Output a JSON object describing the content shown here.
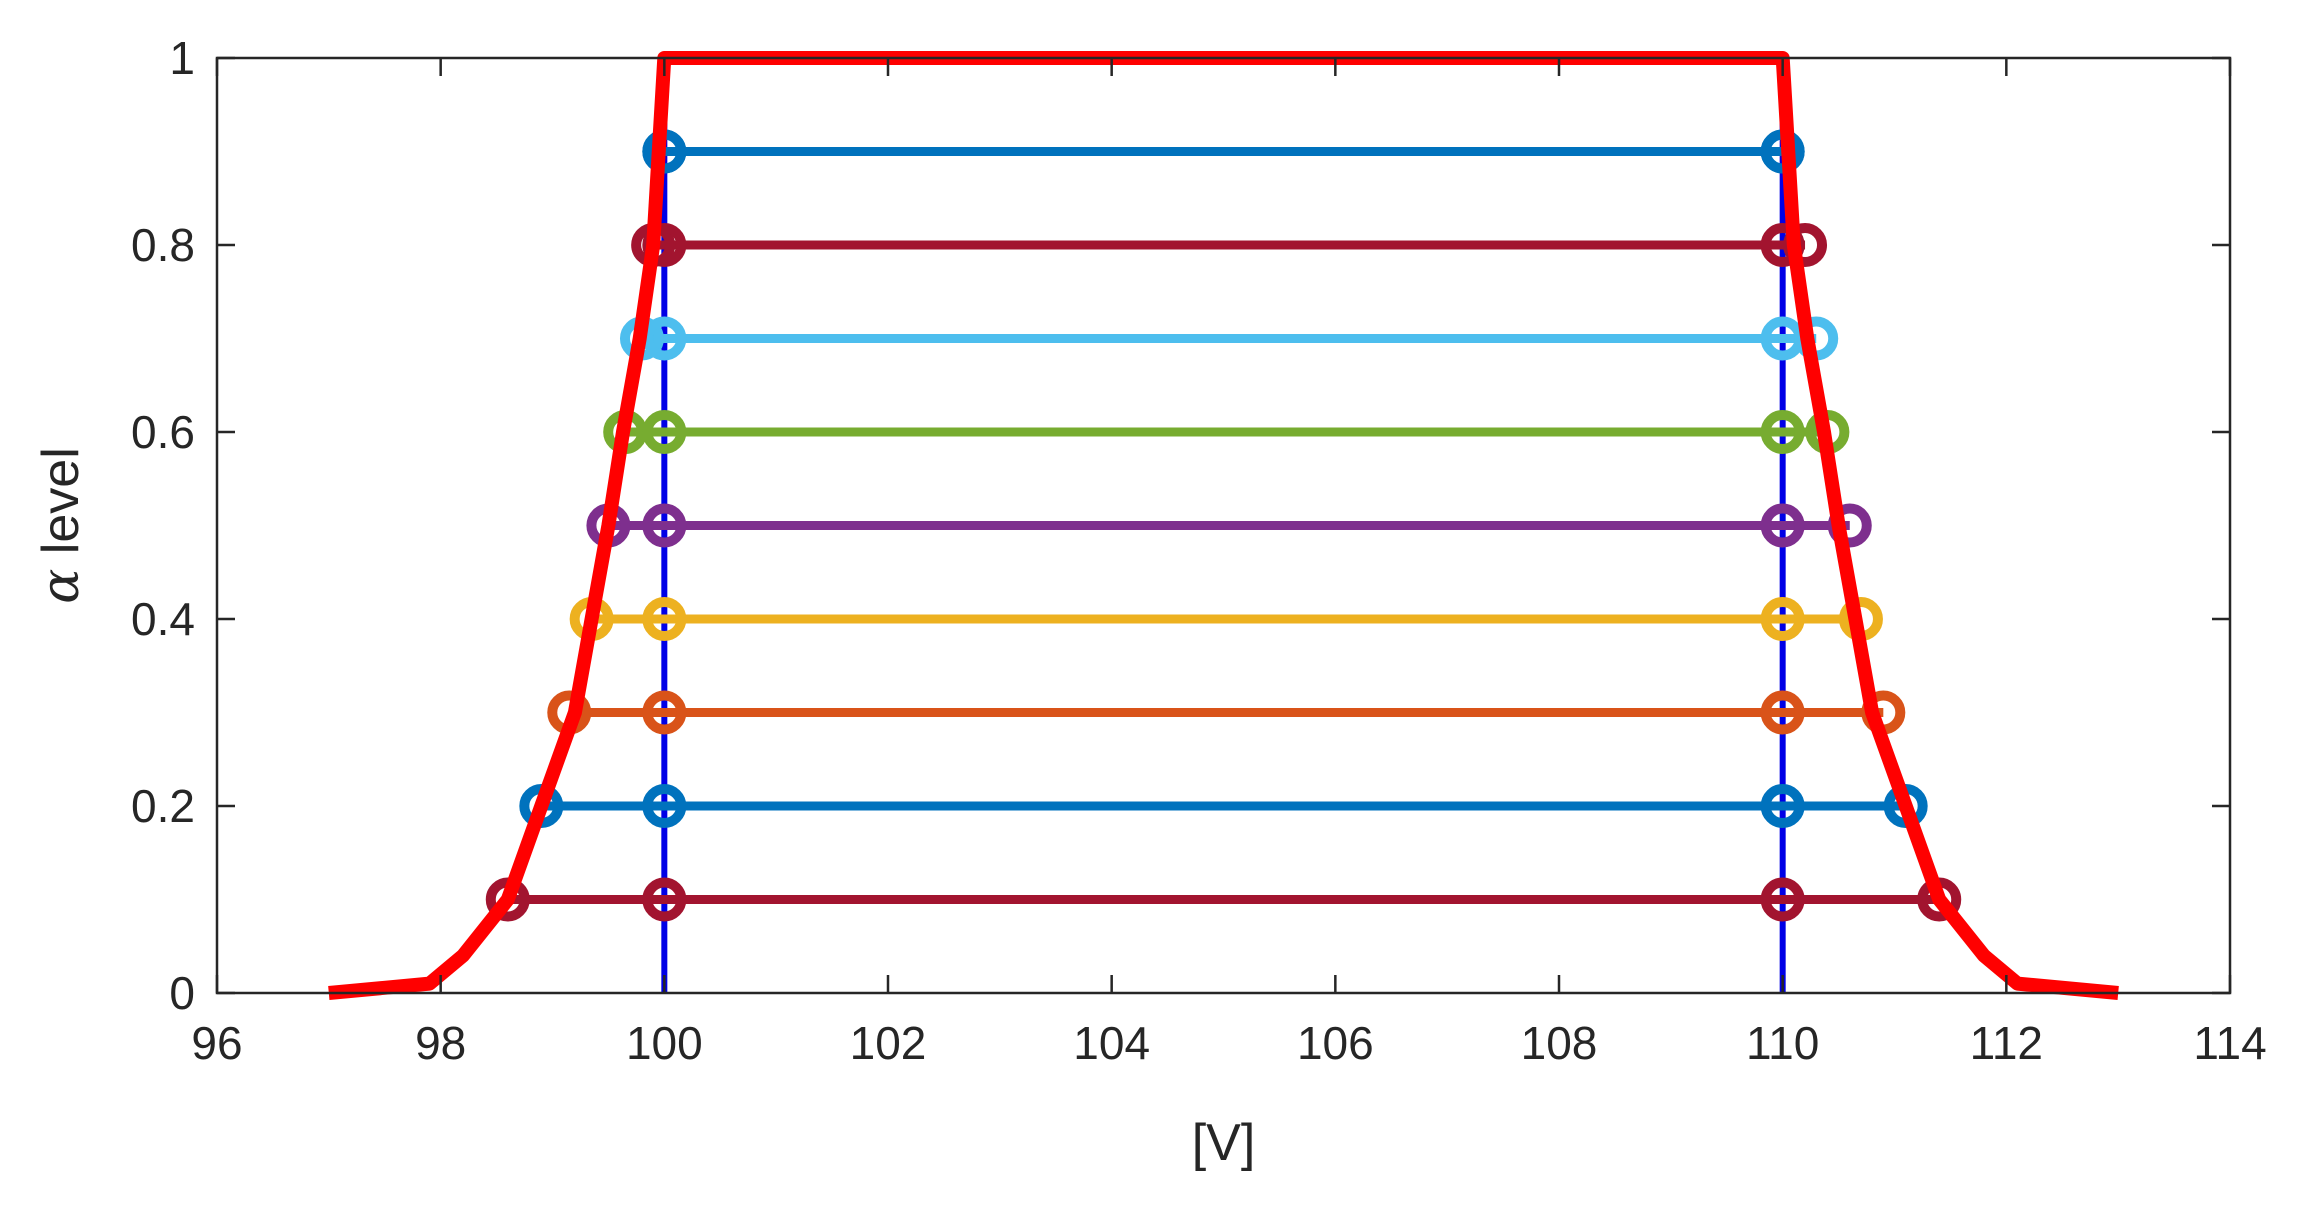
{
  "chart_data": {
    "type": "line",
    "xlabel": "[V]",
    "ylabel_symbol": "α",
    "ylabel_text": " level",
    "xlim": [
      96,
      114
    ],
    "ylim": [
      0,
      1
    ],
    "xticks": [
      "96",
      "98",
      "100",
      "102",
      "104",
      "106",
      "108",
      "110",
      "112",
      "114"
    ],
    "yticks": [
      "0",
      "0.2",
      "0.4",
      "0.6",
      "0.8",
      "1"
    ],
    "grid": false,
    "membership_function": {
      "color": "#ff0000",
      "x": [
        97.0,
        97.9,
        98.2,
        98.6,
        98.9,
        99.2,
        99.35,
        99.5,
        99.63,
        99.78,
        99.9,
        100.0,
        110.0,
        110.1,
        110.22,
        110.37,
        110.5,
        110.65,
        110.8,
        111.1,
        111.4,
        111.8,
        112.1,
        113.0
      ],
      "y": [
        0.0,
        0.01,
        0.04,
        0.1,
        0.2,
        0.3,
        0.4,
        0.5,
        0.6,
        0.7,
        0.8,
        1.0,
        1.0,
        0.8,
        0.7,
        0.6,
        0.5,
        0.4,
        0.3,
        0.2,
        0.1,
        0.04,
        0.01,
        0.0
      ]
    },
    "crisp_bounds": {
      "color": "#0000e6",
      "x": [
        100,
        110
      ]
    },
    "alpha_cuts": [
      {
        "alpha": 0.1,
        "lower": 98.6,
        "upper": 111.4,
        "color": "#a2142f"
      },
      {
        "alpha": 0.2,
        "lower": 98.9,
        "upper": 111.1,
        "color": "#0072bd"
      },
      {
        "alpha": 0.3,
        "lower": 99.15,
        "upper": 110.9,
        "color": "#d95319"
      },
      {
        "alpha": 0.4,
        "lower": 99.35,
        "upper": 110.7,
        "color": "#edb120"
      },
      {
        "alpha": 0.5,
        "lower": 99.5,
        "upper": 110.6,
        "color": "#7e2f8e"
      },
      {
        "alpha": 0.6,
        "lower": 99.65,
        "upper": 110.4,
        "color": "#77ac30"
      },
      {
        "alpha": 0.7,
        "lower": 99.8,
        "upper": 110.3,
        "color": "#4dbeee"
      },
      {
        "alpha": 0.8,
        "lower": 99.9,
        "upper": 110.2,
        "color": "#a2142f"
      },
      {
        "alpha": 0.9,
        "lower": 100.0,
        "upper": 110.0,
        "color": "#0072bd"
      }
    ]
  }
}
